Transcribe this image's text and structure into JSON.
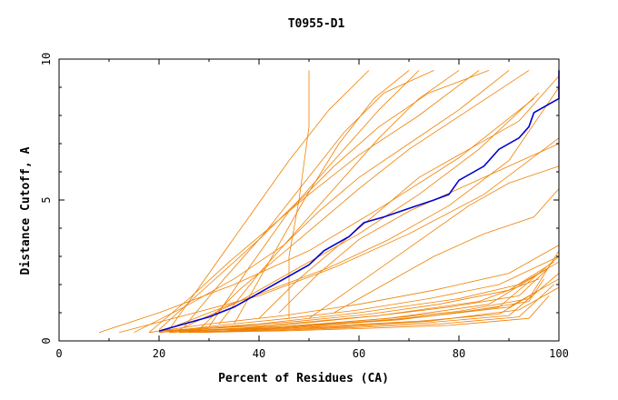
{
  "chart_data": {
    "type": "line",
    "title": "T0955-D1",
    "xlabel": "Percent of Residues (CA)",
    "ylabel": "Distance Cutoff, A",
    "xlim": [
      0,
      100
    ],
    "ylim": [
      0,
      10
    ],
    "xticks": [
      "0",
      "20",
      "40",
      "60",
      "80",
      "100"
    ],
    "yticks": [
      "0",
      "5",
      "10"
    ],
    "grid": false,
    "colors": {
      "background_series": "#f08000",
      "highlight_series": "#0000d0",
      "axis": "#000000"
    },
    "highlight": {
      "x": [
        20,
        25,
        30,
        35,
        40,
        45,
        50,
        53,
        55,
        58,
        61,
        65,
        70,
        75,
        78,
        80,
        85,
        88,
        92,
        94,
        95,
        98,
        100,
        100
      ],
      "y": [
        0.35,
        0.6,
        0.85,
        1.2,
        1.7,
        2.2,
        2.7,
        3.2,
        3.4,
        3.7,
        4.2,
        4.4,
        4.7,
        5.0,
        5.2,
        5.7,
        6.2,
        6.8,
        7.2,
        7.6,
        8.1,
        8.4,
        8.6,
        9.6
      ]
    },
    "series": [
      {
        "x": [
          8,
          20,
          35,
          50,
          65,
          80,
          95
        ],
        "y": [
          0.3,
          1.0,
          2.0,
          3.2,
          4.8,
          6.5,
          8.6
        ]
      },
      {
        "x": [
          12,
          25,
          40,
          55,
          70,
          85,
          100
        ],
        "y": [
          0.3,
          0.9,
          1.6,
          2.6,
          3.8,
          5.2,
          7.2
        ]
      },
      {
        "x": [
          15,
          25,
          35,
          45,
          52,
          60,
          70,
          80,
          90
        ],
        "y": [
          0.3,
          1.2,
          2.2,
          3.4,
          4.6,
          5.8,
          7.0,
          8.2,
          9.6
        ]
      },
      {
        "x": [
          18,
          26,
          34,
          42,
          50,
          60,
          72,
          84
        ],
        "y": [
          0.3,
          1.5,
          2.8,
          4.0,
          5.2,
          6.6,
          8.0,
          9.6
        ]
      },
      {
        "x": [
          20,
          30,
          40,
          48,
          56,
          64,
          72
        ],
        "y": [
          0.4,
          2.0,
          3.6,
          5.0,
          6.6,
          8.2,
          9.6
        ]
      },
      {
        "x": [
          22,
          30,
          38,
          46,
          54,
          62
        ],
        "y": [
          0.4,
          2.4,
          4.4,
          6.4,
          8.2,
          9.6
        ]
      },
      {
        "x": [
          25,
          33,
          41,
          49,
          57,
          65,
          75
        ],
        "y": [
          0.5,
          2.2,
          3.8,
          5.6,
          7.4,
          8.8,
          9.6
        ]
      },
      {
        "x": [
          28,
          36,
          44,
          52,
          60,
          70,
          82,
          94
        ],
        "y": [
          0.4,
          1.8,
          3.0,
          4.2,
          5.4,
          6.8,
          8.2,
          9.6
        ]
      },
      {
        "x": [
          30,
          38,
          46,
          55,
          64,
          74,
          86
        ],
        "y": [
          0.5,
          2.6,
          4.6,
          6.2,
          7.6,
          8.8,
          9.6
        ]
      },
      {
        "x": [
          20,
          30,
          42,
          54,
          66,
          78,
          90,
          100
        ],
        "y": [
          0.3,
          1.0,
          1.8,
          2.6,
          3.6,
          4.8,
          6.4,
          9.0
        ]
      },
      {
        "x": [
          24,
          36,
          48,
          60,
          72,
          84,
          96
        ],
        "y": [
          0.4,
          1.4,
          2.6,
          3.8,
          5.2,
          6.8,
          8.8
        ]
      },
      {
        "x": [
          32,
          40,
          48,
          56,
          64,
          72,
          80
        ],
        "y": [
          0.6,
          2.4,
          4.0,
          5.6,
          7.2,
          8.6,
          9.6
        ]
      },
      {
        "x": [
          35,
          42,
          49,
          56,
          63,
          70
        ],
        "y": [
          0.6,
          2.8,
          5.0,
          7.0,
          8.6,
          9.6
        ]
      },
      {
        "x": [
          40,
          48,
          56,
          64,
          72,
          82,
          92,
          100
        ],
        "y": [
          0.8,
          2.2,
          3.4,
          4.6,
          5.8,
          6.8,
          7.8,
          9.4
        ]
      },
      {
        "x": [
          44,
          52,
          60,
          70,
          80,
          90,
          100
        ],
        "y": [
          1.0,
          2.4,
          3.6,
          4.6,
          5.4,
          6.2,
          7.0
        ]
      },
      {
        "x": [
          46,
          46,
          48,
          50,
          50
        ],
        "y": [
          0.8,
          3.0,
          5.0,
          7.6,
          9.6
        ]
      },
      {
        "x": [
          50,
          58,
          66,
          74,
          82,
          90,
          100
        ],
        "y": [
          0.8,
          1.8,
          2.8,
          3.8,
          4.8,
          5.6,
          6.2
        ]
      },
      {
        "x": [
          55,
          65,
          75,
          85,
          95,
          100
        ],
        "y": [
          1.0,
          2.0,
          3.0,
          3.8,
          4.4,
          5.4
        ]
      },
      {
        "x": [
          18,
          30,
          45,
          60,
          75,
          90,
          100
        ],
        "y": [
          0.3,
          0.6,
          0.9,
          1.3,
          1.8,
          2.4,
          3.4
        ]
      },
      {
        "x": [
          20,
          32,
          46,
          60,
          74,
          88,
          100
        ],
        "y": [
          0.3,
          0.55,
          0.8,
          1.1,
          1.5,
          2.0,
          3.0
        ]
      },
      {
        "x": [
          20,
          34,
          48,
          62,
          76,
          90,
          99
        ],
        "y": [
          0.3,
          0.5,
          0.7,
          0.95,
          1.3,
          1.8,
          2.8
        ]
      },
      {
        "x": [
          22,
          36,
          50,
          64,
          78,
          92,
          98
        ],
        "y": [
          0.3,
          0.45,
          0.65,
          0.9,
          1.2,
          1.6,
          2.6
        ]
      },
      {
        "x": [
          22,
          38,
          52,
          66,
          80,
          94,
          100
        ],
        "y": [
          0.3,
          0.45,
          0.6,
          0.8,
          1.05,
          1.5,
          3.2
        ]
      },
      {
        "x": [
          24,
          38,
          52,
          66,
          80,
          94,
          97
        ],
        "y": [
          0.3,
          0.4,
          0.55,
          0.75,
          1.0,
          1.4,
          2.2
        ]
      },
      {
        "x": [
          24,
          40,
          56,
          72,
          88,
          96
        ],
        "y": [
          0.3,
          0.4,
          0.55,
          0.7,
          0.95,
          1.8
        ]
      },
      {
        "x": [
          26,
          42,
          58,
          74,
          90,
          100
        ],
        "y": [
          0.3,
          0.4,
          0.5,
          0.65,
          0.9,
          2.4
        ]
      },
      {
        "x": [
          26,
          44,
          60,
          76,
          92,
          99
        ],
        "y": [
          0.3,
          0.38,
          0.48,
          0.6,
          0.85,
          2.0
        ]
      },
      {
        "x": [
          28,
          46,
          62,
          78,
          94,
          98
        ],
        "y": [
          0.3,
          0.36,
          0.45,
          0.55,
          0.8,
          1.6
        ]
      },
      {
        "x": [
          20,
          40,
          60,
          80,
          92,
          100
        ],
        "y": [
          0.35,
          0.6,
          1.0,
          1.5,
          2.0,
          2.8
        ]
      },
      {
        "x": [
          20,
          42,
          64,
          84,
          96
        ],
        "y": [
          0.35,
          0.55,
          0.9,
          1.4,
          2.2
        ]
      },
      {
        "x": [
          22,
          44,
          66,
          86,
          98
        ],
        "y": [
          0.35,
          0.5,
          0.8,
          1.3,
          2.6
        ]
      },
      {
        "x": [
          24,
          46,
          68,
          88,
          100
        ],
        "y": [
          0.35,
          0.48,
          0.75,
          1.2,
          3.0
        ]
      },
      {
        "x": [
          30,
          50,
          70,
          90,
          100
        ],
        "y": [
          0.4,
          0.55,
          0.8,
          1.2,
          2.2
        ]
      },
      {
        "x": [
          34,
          54,
          74,
          92,
          100
        ],
        "y": [
          0.4,
          0.5,
          0.7,
          1.1,
          1.9
        ]
      }
    ]
  }
}
